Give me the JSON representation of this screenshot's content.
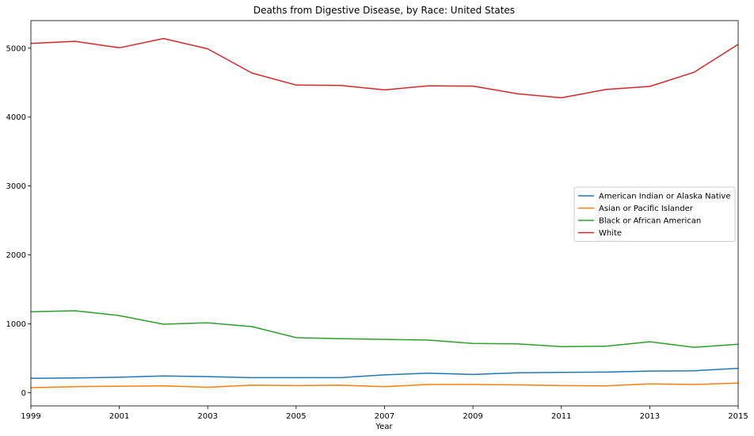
{
  "chart_data": {
    "type": "line",
    "title": "Deaths from Digestive Disease, by Race: United States",
    "xlabel": "Year",
    "ylabel": "",
    "x": [
      1999,
      2000,
      2001,
      2002,
      2003,
      2004,
      2005,
      2006,
      2007,
      2008,
      2009,
      2010,
      2011,
      2012,
      2013,
      2014,
      2015
    ],
    "xlim": [
      1999,
      2015
    ],
    "ylim": [
      -190,
      5400
    ],
    "xticks": [
      "1999",
      "2001",
      "2003",
      "2005",
      "2007",
      "2009",
      "2011",
      "2013",
      "2015"
    ],
    "yticks": [
      "0",
      "1000",
      "2000",
      "3000",
      "4000",
      "5000"
    ],
    "grid": false,
    "legend_position": "center-right",
    "series": [
      {
        "name": "American Indian or Alaska Native",
        "color": "#1f77b4",
        "values": [
          210,
          215,
          225,
          245,
          235,
          220,
          220,
          220,
          260,
          285,
          265,
          290,
          295,
          300,
          315,
          320,
          355
        ]
      },
      {
        "name": "Asian or Pacific Islander",
        "color": "#ff7f0e",
        "values": [
          75,
          90,
          95,
          100,
          80,
          110,
          105,
          110,
          90,
          120,
          120,
          115,
          105,
          100,
          130,
          120,
          140
        ]
      },
      {
        "name": "Black or African American",
        "color": "#2ca02c",
        "values": [
          1175,
          1190,
          1120,
          995,
          1015,
          960,
          800,
          785,
          775,
          765,
          715,
          710,
          670,
          675,
          740,
          660,
          705
        ]
      },
      {
        "name": "White",
        "color": "#d62728",
        "values": [
          5070,
          5100,
          5005,
          5140,
          4990,
          4640,
          4465,
          4460,
          4395,
          4455,
          4450,
          4340,
          4280,
          4400,
          4445,
          4650,
          5055
        ]
      }
    ]
  }
}
